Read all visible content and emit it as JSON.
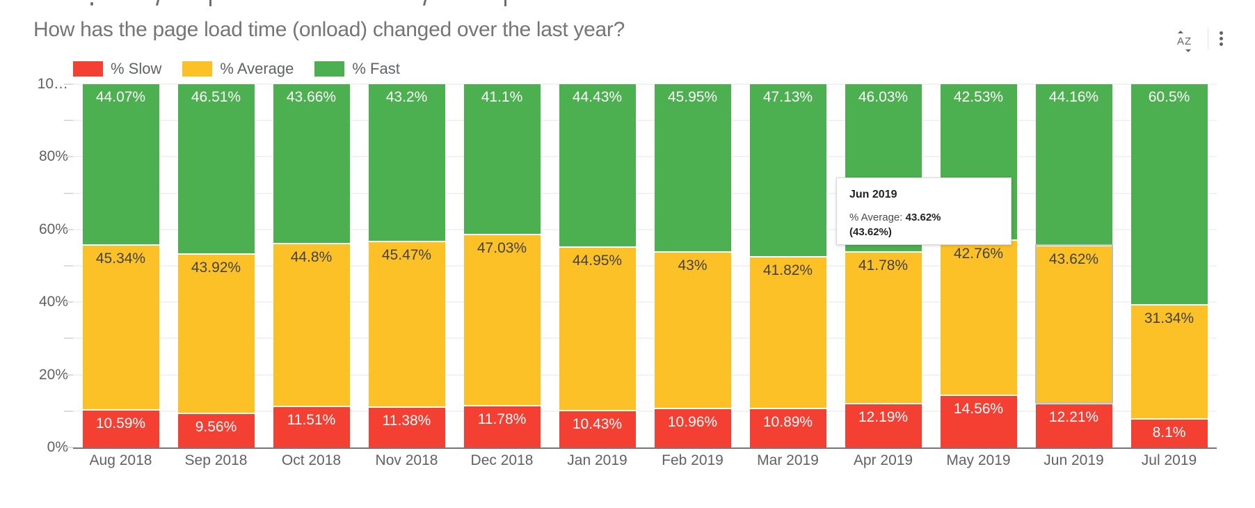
{
  "header": {
    "title": "How has the page load time (onload) changed over the last year?",
    "sort_icon_letters": "AZ"
  },
  "y_axis": {
    "tick_labels": [
      {
        "text": "0%",
        "value": 0
      },
      {
        "text": "20%",
        "value": 20
      },
      {
        "text": "40%",
        "value": 40
      },
      {
        "text": "60%",
        "value": 60
      },
      {
        "text": "80%",
        "value": 80
      },
      {
        "text": "10…",
        "value": 100
      }
    ]
  },
  "chart_data": {
    "type": "bar",
    "stacked": true,
    "stacking": "percent",
    "title": "How has the page load time (onload) changed over the last year?",
    "categories": [
      "Aug 2018",
      "Sep 2018",
      "Oct 2018",
      "Nov 2018",
      "Dec 2018",
      "Jan 2019",
      "Feb 2019",
      "Mar 2019",
      "Apr 2019",
      "May 2019",
      "Jun 2019",
      "Jul 2019"
    ],
    "series": [
      {
        "name": "% Slow",
        "color": "#F43F33",
        "label_color": "#FFFFFF",
        "values": [
          10.59,
          9.56,
          11.51,
          11.38,
          11.78,
          10.43,
          10.96,
          10.89,
          12.19,
          14.56,
          12.21,
          8.1
        ]
      },
      {
        "name": "% Average",
        "color": "#FDC128",
        "label_color": "#424242",
        "values": [
          45.34,
          43.92,
          44.8,
          45.47,
          47.03,
          44.95,
          43,
          41.82,
          41.78,
          42.76,
          43.62,
          31.34
        ]
      },
      {
        "name": "% Fast",
        "color": "#4CAF50",
        "label_color": "#FFFFFF",
        "values": [
          44.07,
          46.51,
          43.66,
          43.2,
          41.1,
          44.43,
          45.95,
          47.13,
          46.03,
          42.53,
          44.16,
          60.5
        ]
      }
    ],
    "ylim": [
      0,
      100
    ],
    "grid_step": 10,
    "legend_position": "top",
    "highlighted_segment": {
      "category": "Jun 2019",
      "series": "% Average"
    }
  },
  "tooltip": {
    "title": "Jun 2019",
    "series_label": "% Average:",
    "value": "43.62%",
    "secondary_value": "(43.62%)"
  }
}
